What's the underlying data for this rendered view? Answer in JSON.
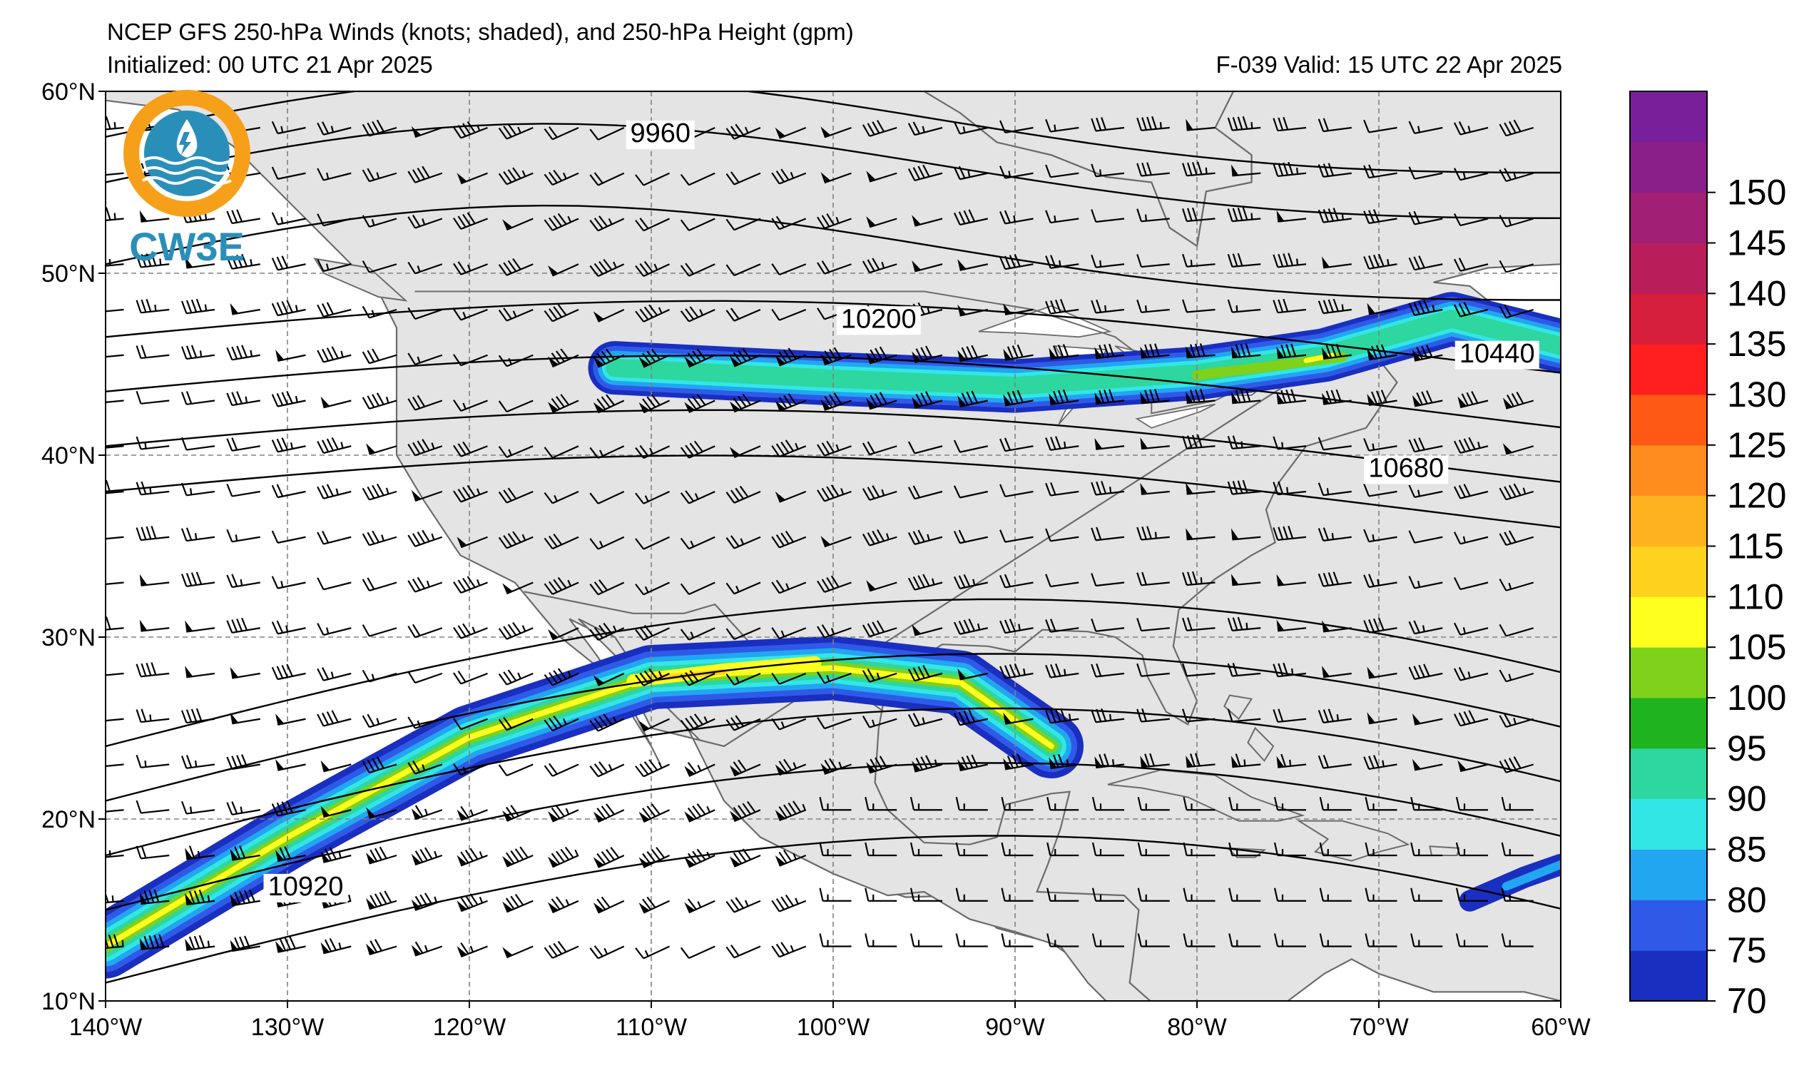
{
  "header": {
    "title": "NCEP GFS 250-hPa Winds (knots; shaded), and 250-hPa Height (gpm)",
    "initialized": "Initialized: 00 UTC 21 Apr 2025",
    "valid": "F-039  Valid: 15 UTC 22 Apr 2025"
  },
  "logo": {
    "text": "CW3E",
    "colors": {
      "orange": "#f6a01a",
      "blue": "#2a8fb8"
    }
  },
  "map": {
    "projection": "cylindrical",
    "lon_range": [
      -140,
      -60
    ],
    "lat_range": [
      10,
      60
    ],
    "land_color": "#e4e4e4",
    "ocean_color": "#ffffff",
    "grid": true,
    "x_ticks": [
      "140°W",
      "130°W",
      "120°W",
      "110°W",
      "100°W",
      "90°W",
      "80°W",
      "70°W",
      "60°W"
    ],
    "y_ticks": [
      "60°N",
      "50°N",
      "40°N",
      "30°N",
      "20°N",
      "10°N"
    ],
    "contour_labels": [
      {
        "text": "9960",
        "lon": -109.5,
        "lat": 57.6
      },
      {
        "text": "10200",
        "lon": -97.5,
        "lat": 47.4
      },
      {
        "text": "10440",
        "lon": -63.5,
        "lat": 45.5
      },
      {
        "text": "10680",
        "lon": -68.5,
        "lat": 39.2
      },
      {
        "text": "10920",
        "lon": -129,
        "lat": 16.2
      }
    ],
    "height_contour_lats_at_west_edge": [
      57.5,
      55.0,
      50.5,
      46.5,
      43.5,
      40.5,
      38.0,
      24.0,
      21.0,
      18.0,
      15.0,
      11.0
    ],
    "jet_cores": [
      {
        "name": "subtropical jet",
        "path": [
          [
            -140,
            13
          ],
          [
            -130,
            19
          ],
          [
            -120,
            24.5
          ],
          [
            -110,
            27.8
          ],
          [
            -100,
            28.3
          ],
          [
            -93,
            27.5
          ],
          [
            -88,
            24
          ]
        ],
        "max_knots": 110
      },
      {
        "name": "northern jet",
        "path": [
          [
            -112,
            44.8
          ],
          [
            -100,
            44.2
          ],
          [
            -90,
            43.8
          ],
          [
            -80,
            44.5
          ],
          [
            -73,
            45.5
          ],
          [
            -66,
            47.5
          ],
          [
            -60,
            46
          ]
        ],
        "max_knots": 112
      }
    ]
  },
  "colorbar": {
    "levels": [
      70,
      75,
      80,
      85,
      90,
      95,
      100,
      105,
      110,
      115,
      120,
      125,
      130,
      135,
      140,
      145,
      150,
      155
    ],
    "colors": [
      "#1a2fbf",
      "#2f5ae8",
      "#22a6f0",
      "#33e6e6",
      "#2ed6a0",
      "#1fb31f",
      "#7fd11a",
      "#ffff1f",
      "#ffd21f",
      "#ffb21f",
      "#ff8c1f",
      "#ff5a14",
      "#ff1f1f",
      "#d61f3c",
      "#b81f5a",
      "#a11f74",
      "#8a1f8a",
      "#7a1f9a"
    ],
    "tick_labels": [
      "70",
      "75",
      "80",
      "85",
      "90",
      "95",
      "100",
      "105",
      "110",
      "115",
      "120",
      "125",
      "130",
      "135",
      "140",
      "145",
      "150"
    ]
  }
}
